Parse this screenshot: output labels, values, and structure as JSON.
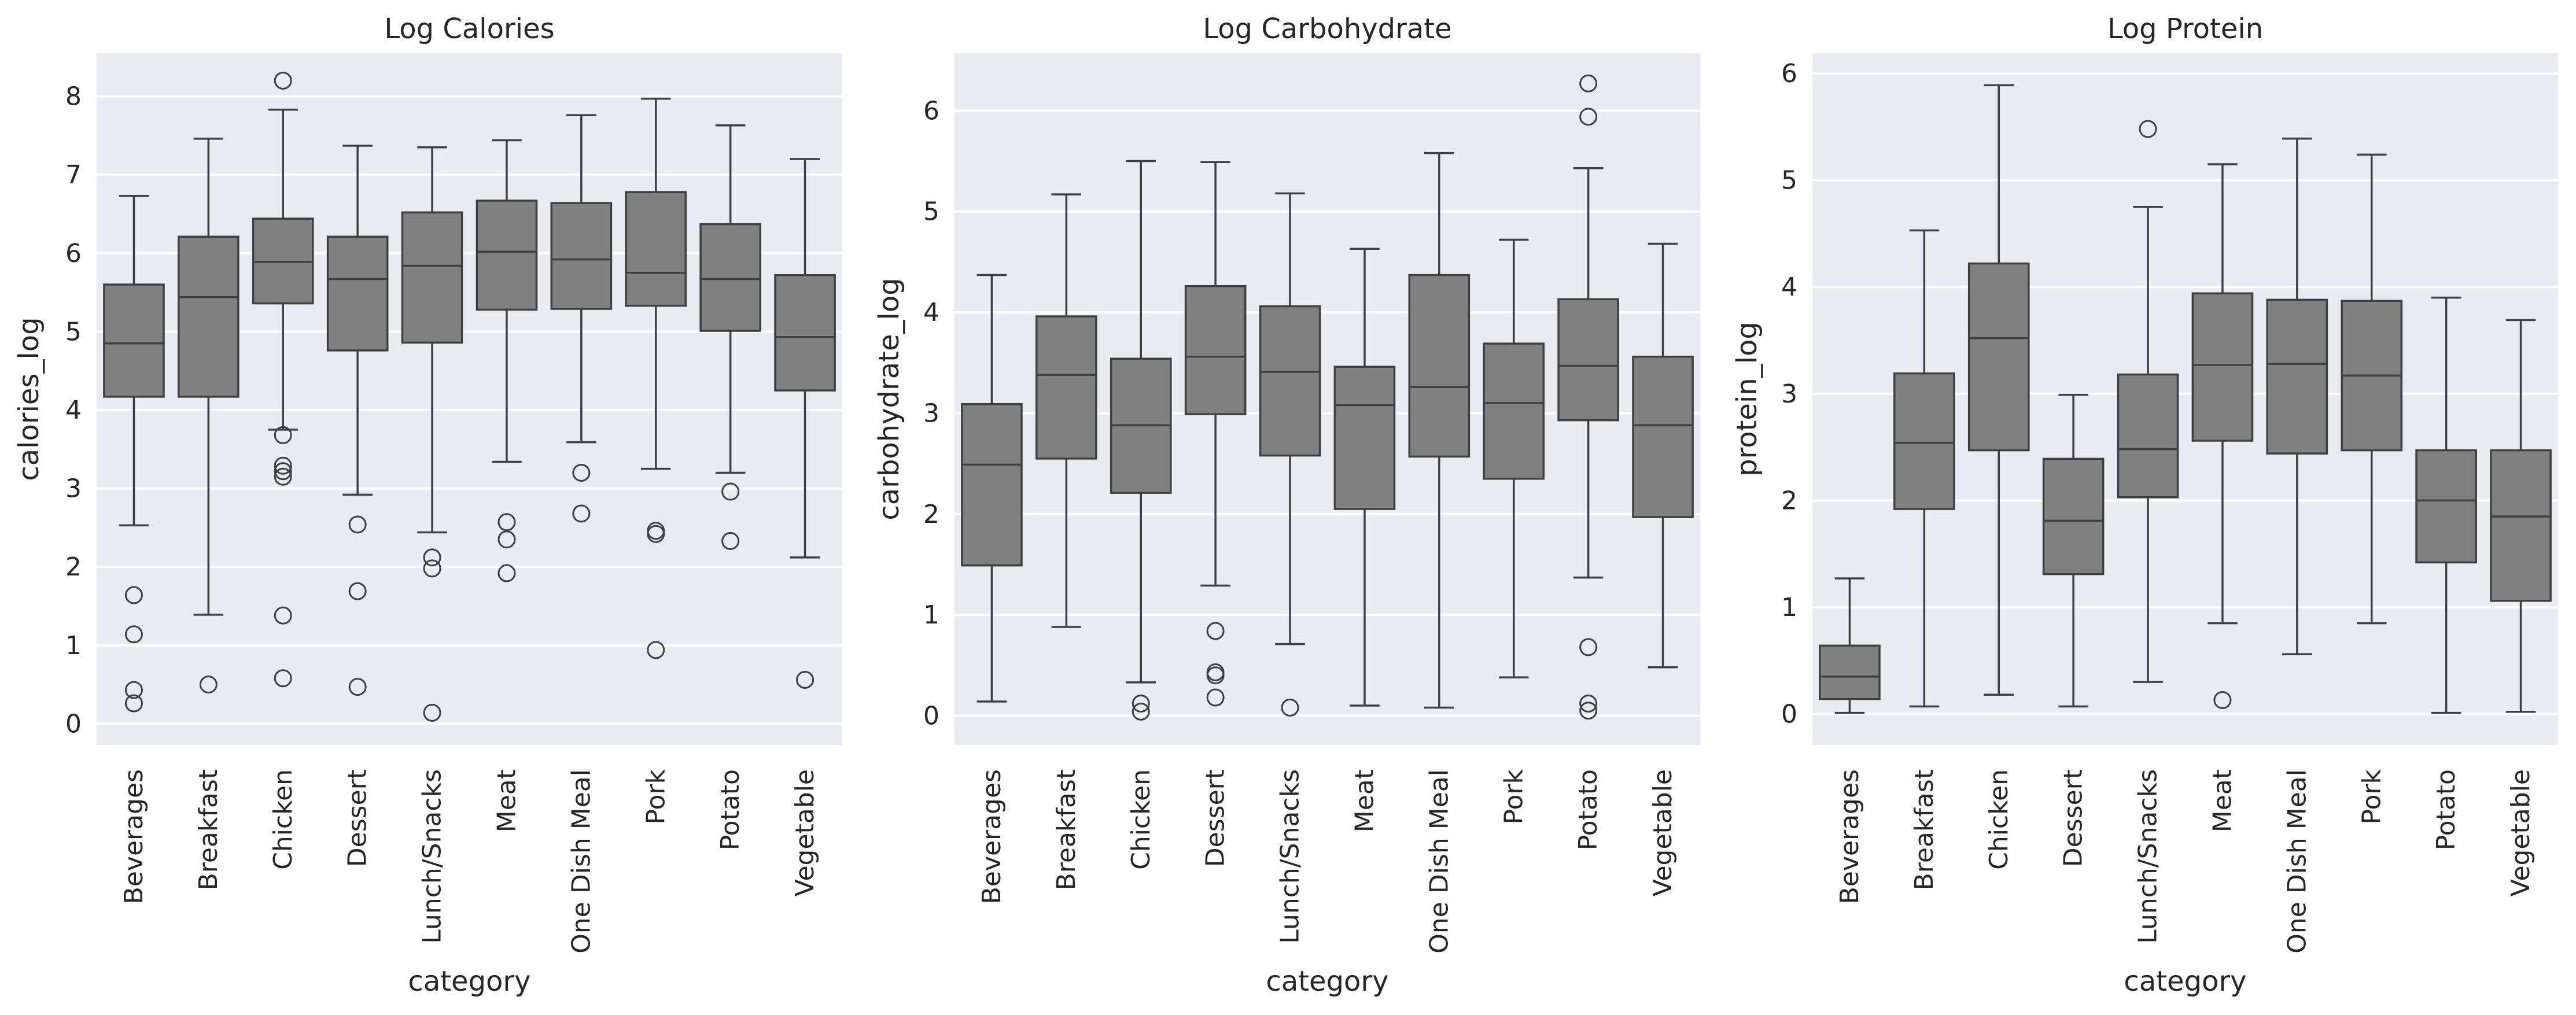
{
  "chart_data": [
    {
      "type": "box",
      "title": "Log Calories",
      "xlabel": "category",
      "ylabel": "calories_log",
      "ylim": [
        -0.27,
        8.55
      ],
      "yticks": [
        0,
        1,
        2,
        3,
        4,
        5,
        6,
        7,
        8
      ],
      "grid": true,
      "color": "#808080",
      "categories": [
        "Beverages",
        "Breakfast",
        "Chicken",
        "Dessert",
        "Lunch/Snacks",
        "Meat",
        "One Dish Meal",
        "Pork",
        "Potato",
        "Vegetable"
      ],
      "boxes": [
        {
          "whislo": 2.53,
          "q1": 4.17,
          "med": 4.85,
          "q3": 5.6,
          "whishi": 6.73,
          "fliers": [
            1.64,
            1.14,
            0.43,
            0.26
          ]
        },
        {
          "whislo": 1.39,
          "q1": 4.17,
          "med": 5.44,
          "q3": 6.21,
          "whishi": 7.46,
          "fliers": [
            0.5
          ]
        },
        {
          "whislo": 3.75,
          "q1": 5.36,
          "med": 5.89,
          "q3": 6.44,
          "whishi": 7.83,
          "fliers": [
            8.2,
            3.68,
            3.29,
            3.22,
            3.15,
            1.38,
            0.58
          ]
        },
        {
          "whislo": 2.92,
          "q1": 4.76,
          "med": 5.67,
          "q3": 6.21,
          "whishi": 7.37,
          "fliers": [
            2.54,
            1.69,
            0.47
          ]
        },
        {
          "whislo": 2.44,
          "q1": 4.86,
          "med": 5.84,
          "q3": 6.52,
          "whishi": 7.35,
          "fliers": [
            2.12,
            1.98,
            0.14
          ]
        },
        {
          "whislo": 3.34,
          "q1": 5.28,
          "med": 6.02,
          "q3": 6.67,
          "whishi": 7.44,
          "fliers": [
            2.57,
            2.35,
            1.92
          ]
        },
        {
          "whislo": 3.59,
          "q1": 5.29,
          "med": 5.92,
          "q3": 6.64,
          "whishi": 7.76,
          "fliers": [
            3.2,
            2.68
          ]
        },
        {
          "whislo": 3.25,
          "q1": 5.33,
          "med": 5.75,
          "q3": 6.78,
          "whishi": 7.97,
          "fliers": [
            2.46,
            2.42,
            0.94
          ]
        },
        {
          "whislo": 3.2,
          "q1": 5.01,
          "med": 5.67,
          "q3": 6.37,
          "whishi": 7.63,
          "fliers": [
            2.96,
            2.33
          ]
        },
        {
          "whislo": 2.12,
          "q1": 4.25,
          "med": 4.93,
          "q3": 5.72,
          "whishi": 7.2,
          "fliers": [
            0.56
          ]
        }
      ]
    },
    {
      "type": "box",
      "title": "Log Carbohydrate",
      "xlabel": "category",
      "ylabel": "carbohydrate_log",
      "ylim": [
        -0.29,
        6.57
      ],
      "yticks": [
        0,
        1,
        2,
        3,
        4,
        5,
        6
      ],
      "grid": true,
      "color": "#808080",
      "categories": [
        "Beverages",
        "Breakfast",
        "Chicken",
        "Dessert",
        "Lunch/Snacks",
        "Meat",
        "One Dish Meal",
        "Pork",
        "Potato",
        "Vegetable"
      ],
      "boxes": [
        {
          "whislo": 0.14,
          "q1": 1.49,
          "med": 2.49,
          "q3": 3.09,
          "whishi": 4.37,
          "fliers": []
        },
        {
          "whislo": 0.88,
          "q1": 2.55,
          "med": 3.38,
          "q3": 3.96,
          "whishi": 5.17,
          "fliers": []
        },
        {
          "whislo": 0.33,
          "q1": 2.21,
          "med": 2.88,
          "q3": 3.54,
          "whishi": 5.5,
          "fliers": [
            0.12,
            0.04
          ]
        },
        {
          "whislo": 1.29,
          "q1": 2.99,
          "med": 3.56,
          "q3": 4.26,
          "whishi": 5.49,
          "fliers": [
            0.84,
            0.43,
            0.4,
            0.18
          ]
        },
        {
          "whislo": 0.71,
          "q1": 2.58,
          "med": 3.41,
          "q3": 4.06,
          "whishi": 5.18,
          "fliers": [
            0.08
          ]
        },
        {
          "whislo": 0.1,
          "q1": 2.05,
          "med": 3.08,
          "q3": 3.46,
          "whishi": 4.63,
          "fliers": []
        },
        {
          "whislo": 0.08,
          "q1": 2.57,
          "med": 3.26,
          "q3": 4.37,
          "whishi": 5.58,
          "fliers": []
        },
        {
          "whislo": 0.38,
          "q1": 2.35,
          "med": 3.1,
          "q3": 3.69,
          "whishi": 4.72,
          "fliers": []
        },
        {
          "whislo": 1.37,
          "q1": 2.93,
          "med": 3.47,
          "q3": 4.13,
          "whishi": 5.43,
          "fliers": [
            6.27,
            5.94,
            0.68,
            0.12,
            0.05
          ]
        },
        {
          "whislo": 0.48,
          "q1": 1.97,
          "med": 2.88,
          "q3": 3.56,
          "whishi": 4.68,
          "fliers": []
        }
      ]
    },
    {
      "type": "box",
      "title": "Log Protein",
      "xlabel": "category",
      "ylabel": "protein_log",
      "ylim": [
        -0.29,
        6.19
      ],
      "yticks": [
        0,
        1,
        2,
        3,
        4,
        5,
        6
      ],
      "grid": true,
      "color": "#808080",
      "categories": [
        "Beverages",
        "Breakfast",
        "Chicken",
        "Dessert",
        "Lunch/Snacks",
        "Meat",
        "One Dish Meal",
        "Pork",
        "Potato",
        "Vegetable"
      ],
      "boxes": [
        {
          "whislo": 0.01,
          "q1": 0.14,
          "med": 0.35,
          "q3": 0.64,
          "whishi": 1.27,
          "fliers": []
        },
        {
          "whislo": 0.07,
          "q1": 1.92,
          "med": 2.54,
          "q3": 3.19,
          "whishi": 4.53,
          "fliers": []
        },
        {
          "whislo": 0.18,
          "q1": 2.47,
          "med": 3.52,
          "q3": 4.22,
          "whishi": 5.89,
          "fliers": []
        },
        {
          "whislo": 0.07,
          "q1": 1.31,
          "med": 1.81,
          "q3": 2.39,
          "whishi": 2.99,
          "fliers": []
        },
        {
          "whislo": 0.3,
          "q1": 2.03,
          "med": 2.48,
          "q3": 3.18,
          "whishi": 4.75,
          "fliers": [
            5.48
          ]
        },
        {
          "whislo": 0.85,
          "q1": 2.56,
          "med": 3.27,
          "q3": 3.94,
          "whishi": 5.15,
          "fliers": [
            0.13
          ]
        },
        {
          "whislo": 0.56,
          "q1": 2.44,
          "med": 3.28,
          "q3": 3.88,
          "whishi": 5.39,
          "fliers": []
        },
        {
          "whislo": 0.85,
          "q1": 2.47,
          "med": 3.17,
          "q3": 3.87,
          "whishi": 5.24,
          "fliers": []
        },
        {
          "whislo": 0.01,
          "q1": 1.42,
          "med": 2.0,
          "q3": 2.47,
          "whishi": 3.9,
          "fliers": []
        },
        {
          "whislo": 0.02,
          "q1": 1.06,
          "med": 1.85,
          "q3": 2.47,
          "whishi": 3.69,
          "fliers": []
        }
      ]
    }
  ]
}
